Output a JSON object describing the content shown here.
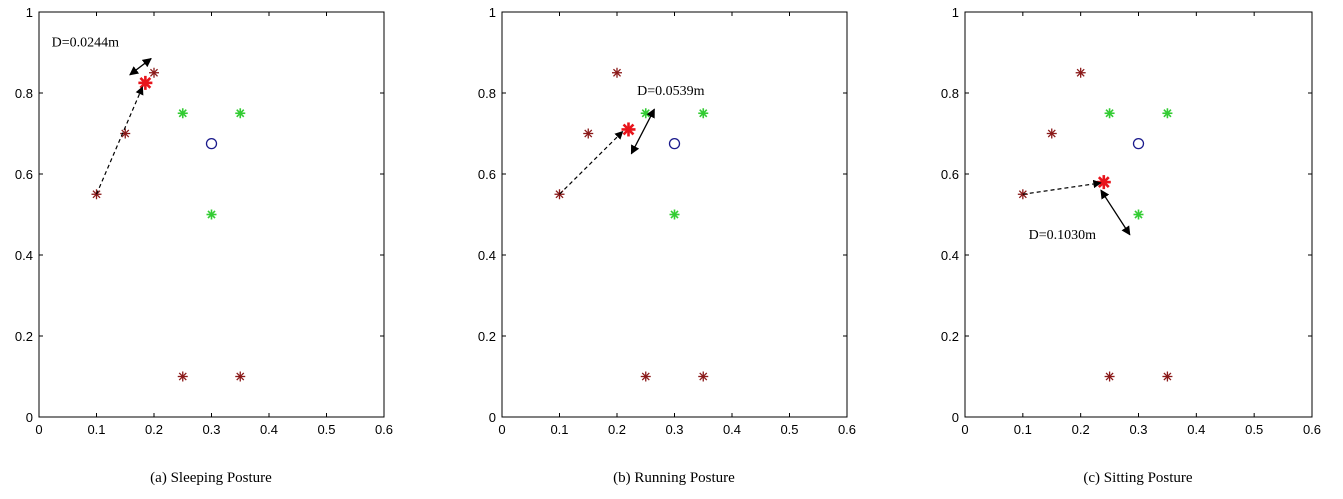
{
  "colors": {
    "dark_star": "#8b1a1a",
    "green_star": "#33cc33",
    "highlight_star": "#e8141b",
    "circle": "#1a1a8c",
    "arrow": "#000000"
  },
  "chart_data": [
    {
      "type": "scatter",
      "xlim": [
        0,
        0.6
      ],
      "ylim": [
        0,
        1
      ],
      "x_ticks": [
        0,
        0.1,
        0.2,
        0.3,
        0.4,
        0.5,
        0.6
      ],
      "y_ticks": [
        0,
        0.2,
        0.4,
        0.6,
        0.8,
        1
      ],
      "x_tick_labels": [
        "0",
        "0.1",
        "0.2",
        "0.3",
        "0.4",
        "0.5",
        "0.6"
      ],
      "y_tick_labels": [
        "0",
        "0.2",
        "0.4",
        "0.6",
        "0.8",
        "1"
      ],
      "caption": "(a) Sleeping Posture",
      "grid": false,
      "series": [
        {
          "marker": "dark-star",
          "points": [
            [
              0.1,
              0.55
            ],
            [
              0.15,
              0.7
            ],
            [
              0.2,
              0.85
            ],
            [
              0.25,
              0.1
            ],
            [
              0.35,
              0.1
            ]
          ]
        },
        {
          "marker": "green-star",
          "points": [
            [
              0.25,
              0.75
            ],
            [
              0.35,
              0.75
            ],
            [
              0.3,
              0.5
            ]
          ]
        },
        {
          "marker": "circle",
          "points": [
            [
              0.3,
              0.675
            ]
          ]
        },
        {
          "marker": "highlight-star",
          "points": [
            [
              0.185,
              0.825
            ]
          ]
        }
      ],
      "dashed_arrows": [
        {
          "from": [
            0.1,
            0.55
          ],
          "to": [
            0.18,
            0.815
          ]
        }
      ],
      "double_arrows": [
        {
          "from": [
            0.158,
            0.845
          ],
          "to": [
            0.195,
            0.885
          ]
        }
      ],
      "annotation": {
        "text": "D=0.0244m",
        "at": [
          0.022,
          0.915
        ]
      }
    },
    {
      "type": "scatter",
      "xlim": [
        0,
        0.6
      ],
      "ylim": [
        0,
        1
      ],
      "x_ticks": [
        0,
        0.1,
        0.2,
        0.3,
        0.4,
        0.5,
        0.6
      ],
      "y_ticks": [
        0,
        0.2,
        0.4,
        0.6,
        0.8,
        1
      ],
      "x_tick_labels": [
        "0",
        "0.1",
        "0.2",
        "0.3",
        "0.4",
        "0.5",
        "0.6"
      ],
      "y_tick_labels": [
        "0",
        "0.2",
        "0.4",
        "0.6",
        "0.8",
        "1"
      ],
      "caption": "(b) Running Posture",
      "grid": false,
      "series": [
        {
          "marker": "dark-star",
          "points": [
            [
              0.1,
              0.55
            ],
            [
              0.15,
              0.7
            ],
            [
              0.2,
              0.85
            ],
            [
              0.25,
              0.1
            ],
            [
              0.35,
              0.1
            ]
          ]
        },
        {
          "marker": "green-star",
          "points": [
            [
              0.25,
              0.75
            ],
            [
              0.35,
              0.75
            ],
            [
              0.3,
              0.5
            ]
          ]
        },
        {
          "marker": "circle",
          "points": [
            [
              0.3,
              0.675
            ]
          ]
        },
        {
          "marker": "highlight-star",
          "points": [
            [
              0.22,
              0.71
            ]
          ]
        }
      ],
      "dashed_arrows": [
        {
          "from": [
            0.1,
            0.55
          ],
          "to": [
            0.21,
            0.705
          ]
        }
      ],
      "double_arrows": [
        {
          "from": [
            0.225,
            0.65
          ],
          "to": [
            0.265,
            0.76
          ]
        }
      ],
      "annotation": {
        "text": "D=0.0539m",
        "at": [
          0.235,
          0.795
        ]
      }
    },
    {
      "type": "scatter",
      "xlim": [
        0,
        0.6
      ],
      "ylim": [
        0,
        1
      ],
      "x_ticks": [
        0,
        0.1,
        0.2,
        0.3,
        0.4,
        0.5,
        0.6
      ],
      "y_ticks": [
        0,
        0.2,
        0.4,
        0.6,
        0.8,
        1
      ],
      "x_tick_labels": [
        "0",
        "0.1",
        "0.2",
        "0.3",
        "0.4",
        "0.5",
        "0.6"
      ],
      "y_tick_labels": [
        "0",
        "0.2",
        "0.4",
        "0.6",
        "0.8",
        "1"
      ],
      "caption": "(c) Sitting Posture",
      "grid": false,
      "series": [
        {
          "marker": "dark-star",
          "points": [
            [
              0.1,
              0.55
            ],
            [
              0.15,
              0.7
            ],
            [
              0.2,
              0.85
            ],
            [
              0.25,
              0.1
            ],
            [
              0.35,
              0.1
            ]
          ]
        },
        {
          "marker": "green-star",
          "points": [
            [
              0.25,
              0.75
            ],
            [
              0.35,
              0.75
            ],
            [
              0.3,
              0.5
            ]
          ]
        },
        {
          "marker": "circle",
          "points": [
            [
              0.3,
              0.675
            ]
          ]
        },
        {
          "marker": "highlight-star",
          "points": [
            [
              0.24,
              0.58
            ]
          ]
        }
      ],
      "dashed_arrows": [
        {
          "from": [
            0.1,
            0.55
          ],
          "to": [
            0.235,
            0.578
          ]
        }
      ],
      "double_arrows": [
        {
          "from": [
            0.235,
            0.56
          ],
          "to": [
            0.285,
            0.45
          ]
        }
      ],
      "annotation": {
        "text": "D=0.1030m",
        "at": [
          0.11,
          0.44
        ]
      }
    }
  ]
}
